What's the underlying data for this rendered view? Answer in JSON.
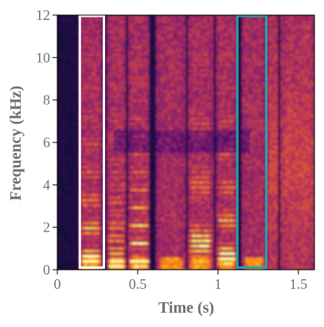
{
  "colors": {
    "background": "#0a0616",
    "colormap": [
      "#000004",
      "#1b0c41",
      "#4a0c6b",
      "#781c6d",
      "#a52c60",
      "#cf4446",
      "#ed6925",
      "#fb9b06",
      "#f7d13d",
      "#fcffa4"
    ],
    "highlight_white": "#ffffff",
    "highlight_teal": "#21a5a6",
    "axis_text": "#6e6e6e"
  },
  "chart_data": {
    "type": "heatmap",
    "title": "",
    "xlabel": "Time (s)",
    "ylabel": "Frequency (kHz)",
    "xlim": [
      0,
      1.6
    ],
    "ylim": [
      0,
      12
    ],
    "xticks": [
      0,
      0.5,
      1,
      1.5
    ],
    "xtick_labels": [
      "0",
      "0.5",
      "1",
      "1.5"
    ],
    "yticks": [
      0,
      2,
      4,
      6,
      8,
      10,
      12
    ],
    "ytick_labels": [
      "0",
      "2",
      "4",
      "6",
      "8",
      "10",
      "12"
    ],
    "grid": false,
    "colormap": "inferno",
    "speech_segments": [
      {
        "start": 0.14,
        "end": 0.28,
        "f0_khz": 0.22,
        "voiced": true
      },
      {
        "start": 0.31,
        "end": 0.43,
        "f0_khz": 0.2,
        "voiced": true
      },
      {
        "start": 0.44,
        "end": 0.58,
        "f0_khz": 0.21,
        "voiced": true
      },
      {
        "start": 0.62,
        "end": 0.8,
        "f0_khz": 0.24,
        "voiced": true
      },
      {
        "start": 0.81,
        "end": 0.97,
        "f0_khz": 0.23,
        "voiced": true
      },
      {
        "start": 0.99,
        "end": 1.12,
        "f0_khz": 0.26,
        "voiced": true
      },
      {
        "start": 1.15,
        "end": 1.3,
        "f0_khz": 0.24,
        "voiced": true
      },
      {
        "start": 1.31,
        "end": 1.38,
        "f0_khz": 0.25,
        "voiced": false
      },
      {
        "start": 1.39,
        "end": 1.6,
        "f0_khz": 0.2,
        "voiced": false
      }
    ],
    "highlight_boxes": [
      {
        "x0": 0.14,
        "x1": 0.29,
        "y0": 0.1,
        "y1": 12.0,
        "color": "white"
      },
      {
        "x0": 1.12,
        "x1": 1.3,
        "y0": 0.1,
        "y1": 12.0,
        "color": "teal"
      }
    ]
  }
}
